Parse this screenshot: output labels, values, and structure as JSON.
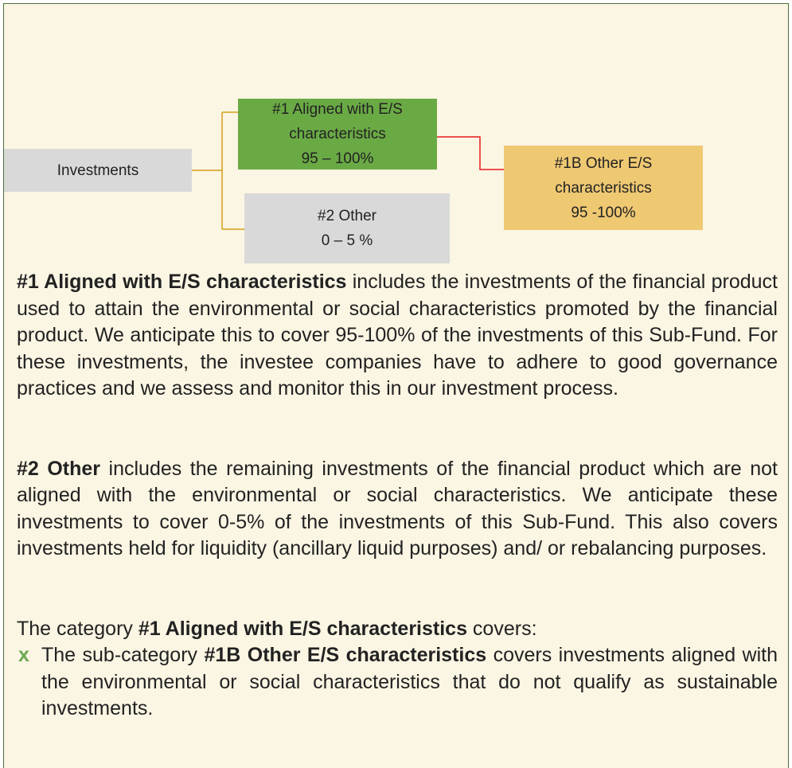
{
  "diagram": {
    "nodes": [
      {
        "lines": [
          "Investments"
        ]
      },
      {
        "lines": [
          "#1 Aligned with E/S",
          "characteristics",
          "95 – 100%"
        ]
      },
      {
        "lines": [
          "#2 Other",
          "0 – 5 %"
        ]
      },
      {
        "lines": [
          "#1B Other E/S",
          "characteristics",
          "95 -100%"
        ]
      }
    ]
  },
  "paragraphs": [
    {
      "lead": "#1 Aligned with E/S characteristics",
      "rest": " includes the investments of the financial product used to attain the environmental or social characteristics promoted by the financial product. We anticipate this to cover 95-100% of the investments of this Sub-Fund. For these investments, the investee companies have to adhere to good governance practices and we assess and monitor this in our investment process."
    },
    {
      "lead": "#2 Other",
      "rest": " includes the remaining investments of the financial product which are not aligned with the environmental or social characteristics. We anticipate these investments to cover 0-5% of the investments of this Sub-Fund. This also covers investments held for liquidity (ancillary liquid purposes) and/ or rebalancing purposes."
    },
    {
      "prefix": "The category ",
      "lead": "#1 Aligned with E/S characteristics",
      "rest": " covers:"
    }
  ],
  "bullets": [
    {
      "marker": "x",
      "prefix": "The sub-category ",
      "lead": "#1B Other E/S characteristics",
      "rest": " covers investments aligned with the environmental or social characteristics that do not qualify as sustainable investments."
    }
  ]
}
